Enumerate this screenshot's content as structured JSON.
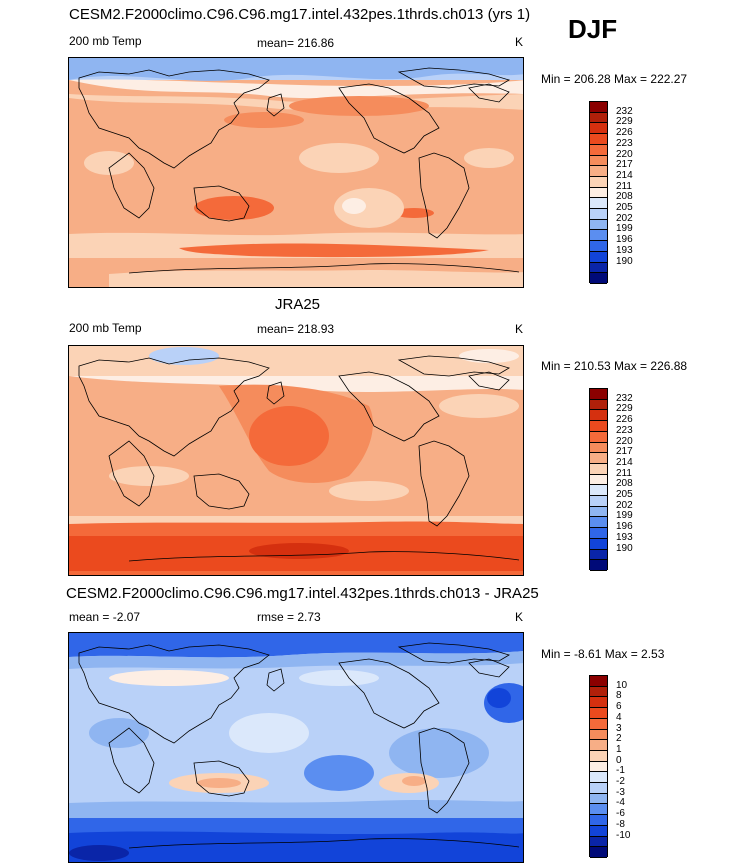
{
  "season": "DJF",
  "panels": [
    {
      "title": "CESM2.F2000climo.C96.C96.mg17.intel.432pes.1thrds.ch013 (yrs 1)",
      "left_label": "200 mb Temp",
      "center_label": "mean= 216.86",
      "units": "K",
      "minmax": "Min = 206.28 Max = 222.27"
    },
    {
      "title": "JRA25",
      "left_label": "200 mb Temp",
      "center_label": "mean= 218.93",
      "units": "K",
      "minmax": "Min = 210.53 Max = 226.88"
    },
    {
      "title": "CESM2.F2000climo.C96.C96.mg17.intel.432pes.1thrds.ch013 - JRA25",
      "left_label": "mean =  -2.07",
      "center_label": "rmse =   2.73",
      "units": "K",
      "minmax": "Min =  -8.61 Max =   2.53"
    }
  ],
  "colorbar_temp": {
    "labels": [
      "232",
      "229",
      "226",
      "223",
      "220",
      "217",
      "214",
      "211",
      "208",
      "205",
      "202",
      "199",
      "196",
      "193",
      "190"
    ],
    "colors": [
      "#8b0000",
      "#b0200a",
      "#d5300f",
      "#eb4a1e",
      "#f46a3a",
      "#f58c5c",
      "#f7ae86",
      "#fbd3b6",
      "#fdeee4",
      "#dbe8fb",
      "#b9d1f8",
      "#8fb5f1",
      "#5b8ef0",
      "#3066e8",
      "#1244d9",
      "#0a25a8",
      "#000a78"
    ]
  },
  "colorbar_diff": {
    "labels": [
      "10",
      "8",
      "6",
      "4",
      "3",
      "2",
      "1",
      "0",
      "-1",
      "-2",
      "-3",
      "-4",
      "-6",
      "-8",
      "-10"
    ],
    "colors": [
      "#8b0000",
      "#b0200a",
      "#d5300f",
      "#eb4a1e",
      "#f46a3a",
      "#f58c5c",
      "#f7ae86",
      "#fbd3b6",
      "#fdeee4",
      "#dbe8fb",
      "#b9d1f8",
      "#8fb5f1",
      "#5b8ef0",
      "#3066e8",
      "#1244d9",
      "#0a25a8",
      "#000a78"
    ]
  }
}
